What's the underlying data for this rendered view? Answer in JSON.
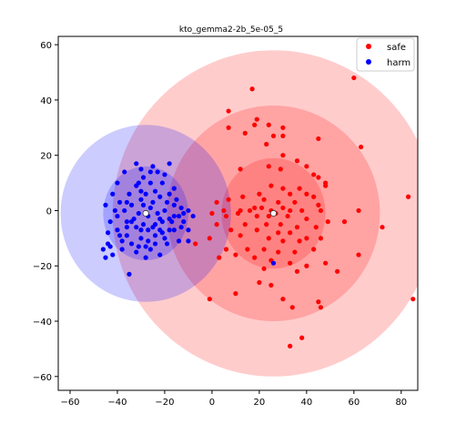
{
  "chart_data": {
    "type": "scatter",
    "title": "kto_gemma2-2b_5e-05_5",
    "xlabel": "",
    "ylabel": "",
    "xlim": [
      -65,
      87
    ],
    "ylim": [
      -65,
      63
    ],
    "xticks": [
      -60,
      -40,
      -20,
      0,
      20,
      40,
      60,
      80
    ],
    "yticks": [
      -60,
      -40,
      -20,
      0,
      20,
      40,
      60
    ],
    "xtick_labels": [
      "−60",
      "−40",
      "−20",
      "0",
      "20",
      "40",
      "60",
      "80"
    ],
    "ytick_labels": [
      "−60",
      "−40",
      "−20",
      "0",
      "20",
      "40",
      "60"
    ],
    "grid": false,
    "legend_position": "top-right",
    "series": [
      {
        "name": "safe",
        "color": "#ff0000",
        "center": [
          26,
          -1
        ],
        "ellipses": [
          {
            "cx": 26,
            "cy": -1,
            "rx": 22,
            "ry": 20
          },
          {
            "cx": 26,
            "cy": -1,
            "rx": 45,
            "ry": 39
          },
          {
            "cx": 26,
            "cy": -1,
            "rx": 68,
            "ry": 59
          }
        ],
        "points": [
          [
            17,
            44
          ],
          [
            60,
            48
          ],
          [
            7,
            36
          ],
          [
            19,
            33
          ],
          [
            18,
            31
          ],
          [
            24,
            31
          ],
          [
            7,
            30
          ],
          [
            30,
            30
          ],
          [
            14,
            28
          ],
          [
            30,
            27
          ],
          [
            26,
            27
          ],
          [
            45,
            26
          ],
          [
            63,
            23
          ],
          [
            23,
            24
          ],
          [
            30,
            20
          ],
          [
            36,
            18
          ],
          [
            40,
            16
          ],
          [
            24,
            16
          ],
          [
            29,
            15
          ],
          [
            12,
            15
          ],
          [
            43,
            13
          ],
          [
            45,
            12
          ],
          [
            48,
            10
          ],
          [
            48,
            9
          ],
          [
            25,
            9
          ],
          [
            30,
            8
          ],
          [
            37,
            8
          ],
          [
            33,
            6
          ],
          [
            20,
            6
          ],
          [
            13,
            5
          ],
          [
            40,
            6
          ],
          [
            43,
            5
          ],
          [
            7,
            4
          ],
          [
            22,
            4
          ],
          [
            28,
            3
          ],
          [
            35,
            3
          ],
          [
            45,
            2
          ],
          [
            18,
            1
          ],
          [
            21,
            1
          ],
          [
            30,
            1
          ],
          [
            2,
            3
          ],
          [
            5,
            0
          ],
          [
            12,
            0
          ],
          [
            16,
            0
          ],
          [
            25,
            0
          ],
          [
            33,
            0
          ],
          [
            38,
            0
          ],
          [
            46,
            0
          ],
          [
            62,
            0
          ],
          [
            83,
            5
          ],
          [
            0,
            -1
          ],
          [
            6,
            -2
          ],
          [
            11,
            -1
          ],
          [
            19,
            -2
          ],
          [
            24,
            -2
          ],
          [
            27,
            -1
          ],
          [
            32,
            -2
          ],
          [
            40,
            -3
          ],
          [
            49,
            -4
          ],
          [
            56,
            -4
          ],
          [
            72,
            -6
          ],
          [
            2,
            -5
          ],
          [
            14,
            -5
          ],
          [
            23,
            -5
          ],
          [
            29,
            -5
          ],
          [
            36,
            -6
          ],
          [
            44,
            -6
          ],
          [
            8,
            -7
          ],
          [
            19,
            -7
          ],
          [
            28,
            -8
          ],
          [
            33,
            -8
          ],
          [
            40,
            -10
          ],
          [
            -1,
            -10
          ],
          [
            12,
            -9
          ],
          [
            24,
            -10
          ],
          [
            30,
            -11
          ],
          [
            37,
            -11
          ],
          [
            46,
            -10
          ],
          [
            -7,
            -12
          ],
          [
            6,
            -14
          ],
          [
            15,
            -14
          ],
          [
            22,
            -14
          ],
          [
            28,
            -15
          ],
          [
            35,
            -15
          ],
          [
            43,
            -14
          ],
          [
            62,
            -16
          ],
          [
            3,
            -17
          ],
          [
            10,
            -16
          ],
          [
            18,
            -17
          ],
          [
            25,
            -18
          ],
          [
            33,
            -19
          ],
          [
            40,
            -20
          ],
          [
            48,
            -19
          ],
          [
            22,
            -21
          ],
          [
            36,
            -22
          ],
          [
            53,
            -22
          ],
          [
            20,
            -26
          ],
          [
            25,
            -27
          ],
          [
            10,
            -30
          ],
          [
            30,
            -32
          ],
          [
            45,
            -33
          ],
          [
            -1,
            -32
          ],
          [
            34,
            -35
          ],
          [
            46,
            -35
          ],
          [
            85,
            -32
          ],
          [
            38,
            -46
          ],
          [
            33,
            -49
          ]
        ]
      },
      {
        "name": "harm",
        "color": "#0000ff",
        "center": [
          -28,
          -1
        ],
        "ellipses": [
          {
            "cx": -28,
            "cy": -1,
            "rx": 18,
            "ry": 17
          },
          {
            "cx": -28,
            "cy": -1,
            "rx": 36,
            "ry": 32
          }
        ],
        "points": [
          [
            -25,
            16
          ],
          [
            -29,
            12
          ],
          [
            -32,
            9
          ],
          [
            -35,
            6
          ],
          [
            -34,
            -4
          ],
          [
            -29,
            -5
          ],
          [
            -24,
            -5
          ],
          [
            -21,
            -4
          ],
          [
            -18,
            -3
          ],
          [
            -16,
            -2
          ],
          [
            -14,
            -2
          ],
          [
            -12,
            -1
          ],
          [
            -12,
            -4
          ],
          [
            -10,
            -7
          ],
          [
            -20,
            -10
          ],
          [
            -26,
            -14
          ],
          [
            -32,
            -15
          ],
          [
            -42,
            -16
          ],
          [
            -45,
            -17
          ],
          [
            -35,
            -23
          ],
          [
            -28,
            -13
          ],
          [
            -24,
            -12
          ],
          [
            -19,
            -12
          ],
          [
            -14,
            -11
          ],
          [
            -10,
            -11
          ],
          [
            -38,
            -11
          ],
          [
            -43,
            -13
          ],
          [
            -46,
            -14
          ],
          [
            -18,
            -7
          ],
          [
            -24,
            -9
          ],
          [
            -30,
            -10
          ],
          [
            -36,
            -9
          ],
          [
            -40,
            -7
          ],
          [
            -44,
            -8
          ],
          [
            -20,
            13
          ],
          [
            -26,
            10
          ],
          [
            -21,
            10
          ],
          [
            -16,
            8
          ],
          [
            -28,
            6
          ],
          [
            -22,
            5
          ],
          [
            -30,
            4
          ],
          [
            -25,
            3
          ],
          [
            -19,
            3
          ],
          [
            -16,
            2
          ],
          [
            -13,
            1
          ],
          [
            -34,
            2
          ],
          [
            -37,
            0
          ],
          [
            -31,
            -1
          ],
          [
            -27,
            -2
          ],
          [
            -23,
            -1
          ],
          [
            -40,
            -2
          ],
          [
            -43,
            -4
          ],
          [
            -36,
            -6
          ],
          [
            -30,
            -7
          ],
          [
            -27,
            -7
          ],
          [
            -22,
            -7
          ],
          [
            -16,
            -7
          ],
          [
            -28,
            -17
          ],
          [
            -22,
            -16
          ],
          [
            -10,
            0
          ],
          [
            -8,
            -2
          ],
          [
            -15,
            4
          ],
          [
            -18,
            6
          ],
          [
            -24,
            7
          ],
          [
            -30,
            7
          ],
          [
            -36,
            3
          ],
          [
            -39,
            3
          ],
          [
            -41,
            0
          ],
          [
            -33,
            -3
          ],
          [
            -25,
            -6
          ],
          [
            -22,
            -3
          ],
          [
            -20,
            0
          ],
          [
            -26,
            1
          ],
          [
            -29,
            2
          ],
          [
            -31,
            10
          ],
          [
            -26,
            14
          ],
          [
            -23,
            14
          ],
          [
            -30,
            15
          ],
          [
            -18,
            17
          ],
          [
            -32,
            17
          ],
          [
            -37,
            14
          ],
          [
            -40,
            10
          ],
          [
            -42,
            6
          ],
          [
            -45,
            2
          ],
          [
            -38,
            -14
          ],
          [
            -34,
            -12
          ],
          [
            -31,
            -13
          ],
          [
            -27,
            -11
          ],
          [
            -21,
            -8
          ],
          [
            -17,
            -4
          ],
          [
            -13,
            -6
          ],
          [
            -36,
            -4
          ],
          [
            -32,
            -6
          ],
          [
            -44,
            -12
          ],
          [
            -39,
            -9
          ],
          [
            26,
            -19
          ]
        ]
      }
    ]
  }
}
